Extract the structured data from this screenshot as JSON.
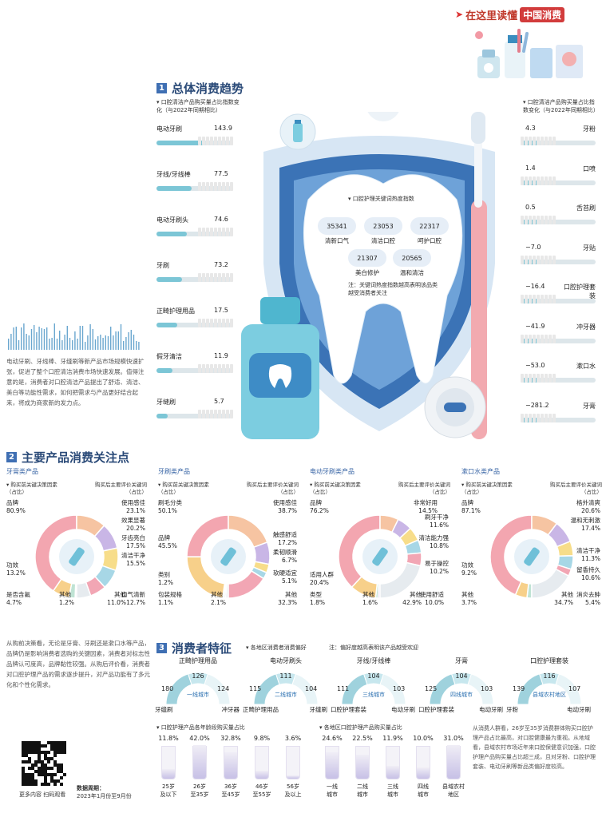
{
  "header": {
    "arrow_title": "在这里读懂",
    "title_pill": "中国消费"
  },
  "section1": {
    "num": "1",
    "title": "总体消费趋势",
    "left_note": "▾ 口腔清洁产品购买量占比指数变化（与2022年同期相比）",
    "right_note": "▾ 口腔清洁产品购买量占比指数变化（与2022年同期相比）",
    "left_items": [
      {
        "label": "电动牙刷",
        "value": "143.9"
      },
      {
        "label": "牙线/牙线棒",
        "value": "77.5"
      },
      {
        "label": "电动牙刷头",
        "value": "74.6"
      },
      {
        "label": "牙刷",
        "value": "73.2"
      },
      {
        "label": "正畸护理用品",
        "value": "17.5"
      },
      {
        "label": "假牙清洁",
        "value": "11.9"
      },
      {
        "label": "牙缝刷",
        "value": "5.7"
      }
    ],
    "right_items": [
      {
        "label": "牙粉",
        "value": "4.3"
      },
      {
        "label": "口喷",
        "value": "1.4"
      },
      {
        "label": "舌苔刷",
        "value": "0.5"
      },
      {
        "label": "牙贴",
        "value": "−7.0"
      },
      {
        "label": "口腔护理套装",
        "value": "−16.4"
      },
      {
        "label": "冲牙器",
        "value": "−41.9"
      },
      {
        "label": "漱口水",
        "value": "−53.0"
      },
      {
        "label": "牙膏",
        "value": "−281.2"
      }
    ],
    "tooth": {
      "title": "▾ 口腔护理关键词热度指数",
      "keywords": [
        {
          "num": "35341",
          "label": "清新口气"
        },
        {
          "num": "23053",
          "label": "清洁口腔"
        },
        {
          "num": "22317",
          "label": "呵护口腔"
        },
        {
          "num": "21307",
          "label": "美白修护"
        },
        {
          "num": "20565",
          "label": "温和清洁"
        }
      ],
      "note": "注：关键词热度指数越高表明该品类越受消费者关注"
    },
    "side_text": "电动牙刷、牙线棒、牙缝刷等新产品市场规模快速扩张，促进了整个口腔清洁消费市场快速发展。值得注意的是，消费者对口腔清洁产品提出了舒适、清洁、美白等功能性需求，如何把需求与产品更好结合起来，将成为商家新的发力点。"
  },
  "section2": {
    "num": "2",
    "title": "主要产品消费关注点",
    "left_hdr": "▾ 购买前关键决策因素（占比）",
    "right_hdr": "购买后主要评价关键词（占比）",
    "panels": [
      {
        "category": "牙膏类产品",
        "pre": [
          {
            "label": "品牌",
            "value": "80.9%"
          },
          {
            "label": "功效",
            "value": "13.2%"
          },
          {
            "label": "是否含氟",
            "value": "4.7%"
          },
          {
            "label": "其他",
            "value": "1.2%"
          }
        ],
        "post": [
          {
            "label": "使用感佳",
            "value": "23.1%"
          },
          {
            "label": "效果显著",
            "value": "20.2%"
          },
          {
            "label": "牙齿亮白",
            "value": "17.5%"
          },
          {
            "label": "清洁干净",
            "value": "15.5%"
          },
          {
            "label": "口气清新",
            "value": "12.7%"
          },
          {
            "label": "其他",
            "value": "11.0%"
          }
        ]
      },
      {
        "category": "牙刷类产品",
        "pre": [
          {
            "label": "刷毛分类",
            "value": "50.1%"
          },
          {
            "label": "品牌",
            "value": "45.5%"
          },
          {
            "label": "类别",
            "value": "1.2%"
          },
          {
            "label": "包装规格",
            "value": "1.1%"
          },
          {
            "label": "其他",
            "value": "2.1%"
          }
        ],
        "post": [
          {
            "label": "使用感佳",
            "value": "38.7%"
          },
          {
            "label": "触感舒适",
            "value": "17.2%"
          },
          {
            "label": "柔韧顺滑",
            "value": "6.7%"
          },
          {
            "label": "软硬适宜",
            "value": "5.1%"
          },
          {
            "label": "其他",
            "value": "32.3%"
          }
        ]
      },
      {
        "category": "电动牙刷类产品",
        "pre": [
          {
            "label": "品牌",
            "value": "76.2%"
          },
          {
            "label": "适用人群",
            "value": "20.4%"
          },
          {
            "label": "类型",
            "value": "1.8%"
          },
          {
            "label": "其他",
            "value": "1.6%"
          }
        ],
        "post": [
          {
            "label": "非常好用",
            "value": "14.5%"
          },
          {
            "label": "刷牙干净",
            "value": "11.6%"
          },
          {
            "label": "清洁能力强",
            "value": "10.8%"
          },
          {
            "label": "易于操控",
            "value": "10.2%"
          },
          {
            "label": "使用舒适",
            "value": "10.0%"
          },
          {
            "label": "其他",
            "value": "42.9%"
          }
        ]
      },
      {
        "category": "漱口水类产品",
        "pre": [
          {
            "label": "品牌",
            "value": "87.1%"
          },
          {
            "label": "功效",
            "value": "9.2%"
          },
          {
            "label": "其他",
            "value": "3.7%"
          }
        ],
        "post": [
          {
            "label": "格外清爽",
            "value": "20.6%"
          },
          {
            "label": "温和无刺激",
            "value": "17.4%"
          },
          {
            "label": "清洁干净",
            "value": "11.3%"
          },
          {
            "label": "留香持久",
            "value": "10.6%"
          },
          {
            "label": "消炎去肿",
            "value": "5.4%"
          },
          {
            "label": "其他",
            "value": "34.7%"
          }
        ]
      }
    ],
    "side_text": "从购前决策看，无论是牙膏、牙刷还是漱口水等产品，品牌仍是影响消费者选购的关键因素，消费者对标志性品牌认可度高，品牌黏性较强。从购后评价看，消费者对口腔护理产品的需求逐步提升，对产品功能有了多元化和个性化需求。"
  },
  "section3": {
    "num": "3",
    "title": "消费者特征",
    "legend": "▾ 各地区消费者消费偏好",
    "legend_note": "注：偏好度越高表明该产品越受欢迎",
    "gauges": [
      {
        "title": "正畸护理用品",
        "left": "180",
        "mid": "126",
        "right": "124",
        "city": "一线城市",
        "l_label": "牙缝刷",
        "r_label": "冲牙器"
      },
      {
        "title": "电动牙刷头",
        "left": "115",
        "mid": "111",
        "right": "104",
        "city": "二线城市",
        "l_label": "正畸护理用品",
        "r_label": "牙缝刷"
      },
      {
        "title": "牙线/牙线棒",
        "left": "111",
        "mid": "104",
        "right": "103",
        "city": "三线城市",
        "l_label": "口腔护理套装",
        "r_label": "电动牙刷"
      },
      {
        "title": "牙膏",
        "left": "125",
        "mid": "104",
        "right": "103",
        "city": "四线城市",
        "l_label": "口腔护理套装",
        "r_label": "电动牙刷"
      },
      {
        "title": "口腔护理套装",
        "left": "139",
        "mid": "116",
        "right": "107",
        "city": "县域农村地区",
        "l_label": "牙粉",
        "r_label": "电动牙刷"
      }
    ],
    "age_title": "▾ 口腔护理产品各年龄段购买量占比",
    "ages": [
      {
        "pct": "11.8%",
        "value": 11.8,
        "label": "25岁\n及以下"
      },
      {
        "pct": "42.0%",
        "value": 42.0,
        "label": "26岁\n至35岁"
      },
      {
        "pct": "32.8%",
        "value": 32.8,
        "label": "36岁\n至45岁"
      },
      {
        "pct": "9.8%",
        "value": 9.8,
        "label": "46岁\n至55岁"
      },
      {
        "pct": "3.6%",
        "value": 3.6,
        "label": "56岁\n及以上"
      }
    ],
    "region_title": "▾ 各地区口腔护理产品购买量占比",
    "regions": [
      {
        "pct": "24.6%",
        "value": 24.6,
        "label": "一线\n城市"
      },
      {
        "pct": "22.5%",
        "value": 22.5,
        "label": "二线\n城市"
      },
      {
        "pct": "11.9%",
        "value": 11.9,
        "label": "三线\n城市"
      },
      {
        "pct": "10.0%",
        "value": 10.0,
        "label": "四线\n城市"
      },
      {
        "pct": "31.0%",
        "value": 31.0,
        "label": "县域农村\n地区"
      }
    ],
    "side_text": "从消费人群看，26岁至35岁消费群体购买口腔护理产品占比最高，对口腔健康最为重视。从地域看，县域农村市场近年来口腔保健意识加强，口腔护理产品购买量占比超三成，且对牙粉、口腔护理套装、电动牙刷等新品类偏好度较高。"
  },
  "footer": {
    "qr_caption": "更多内容 扫码观看",
    "period_label": "数据周期：",
    "period": "2023年1月份至9月份"
  }
}
